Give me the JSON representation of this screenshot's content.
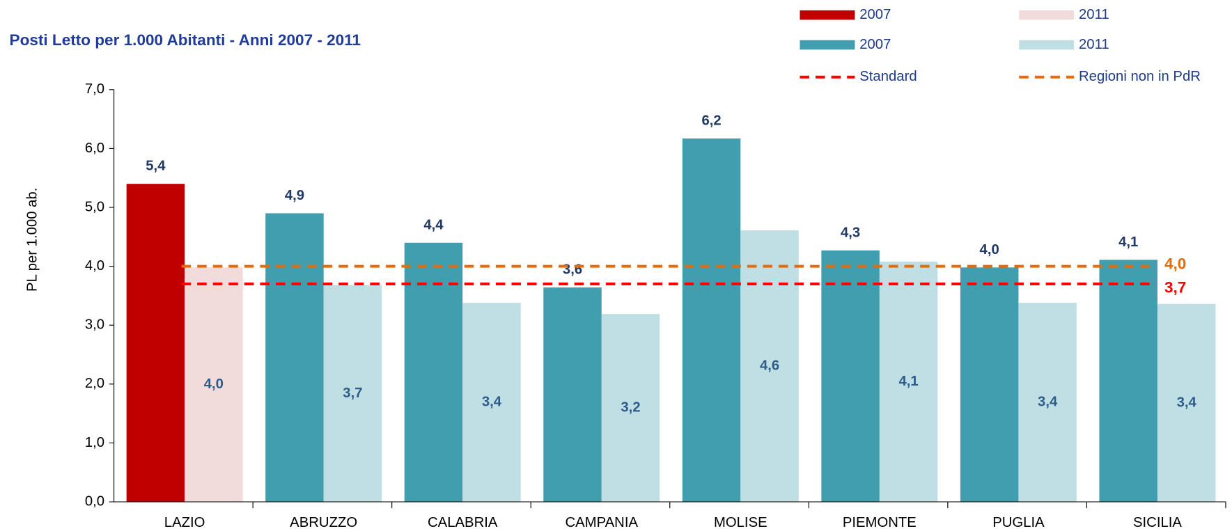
{
  "chart_data": {
    "type": "bar",
    "title": "Posti Letto per 1.000 Abitanti - Anni 2007 - 2011",
    "y_label": "PL per 1.000 ab.",
    "categories": [
      "LAZIO",
      "ABRUZZO",
      "CALABRIA",
      "CAMPANIA",
      "MOLISE",
      "PIEMONTE",
      "PUGLIA",
      "SICILIA"
    ],
    "series": [
      {
        "name": "2007",
        "color": "#c00000",
        "values": [
          5.4,
          null,
          null,
          null,
          null,
          null,
          null,
          null
        ],
        "value_labels": [
          "5,4",
          null,
          null,
          null,
          null,
          null,
          null,
          null
        ]
      },
      {
        "name": "2011",
        "color": "#f2dcdb",
        "values": [
          3.98,
          null,
          null,
          null,
          null,
          null,
          null,
          null
        ],
        "value_labels": [
          "4,0",
          null,
          null,
          null,
          null,
          null,
          null,
          null
        ]
      },
      {
        "name": "2007",
        "color": "#409eae",
        "values": [
          null,
          4.9,
          4.4,
          3.64,
          6.17,
          4.27,
          3.98,
          4.11
        ],
        "value_labels": [
          null,
          "4,9",
          "4,4",
          "3,6",
          "6,2",
          "4,3",
          "4,0",
          "4,1"
        ]
      },
      {
        "name": "2011",
        "color": "#c0dfe4",
        "values": [
          null,
          3.68,
          3.38,
          3.19,
          4.61,
          4.08,
          3.38,
          3.36
        ],
        "value_labels": [
          null,
          "3,7",
          "3,4",
          "3,2",
          "4,6",
          "4,1",
          "3,4",
          "3,4"
        ]
      }
    ],
    "reference_lines": [
      {
        "name": "Standard",
        "value": 3.7,
        "value_label": "3,7",
        "color": "#ff0000"
      },
      {
        "name": "Regioni non in PdR",
        "value": 4.0,
        "value_label": "4,0",
        "color": "#e46c0a"
      }
    ],
    "ylim": [
      0,
      7
    ],
    "yticks": [
      {
        "value": 0,
        "label": "0,0"
      },
      {
        "value": 1,
        "label": "1,0"
      },
      {
        "value": 2,
        "label": "2,0"
      },
      {
        "value": 3,
        "label": "3,0"
      },
      {
        "value": 4,
        "label": "4,0"
      },
      {
        "value": 5,
        "label": "5,0"
      },
      {
        "value": 6,
        "label": "6,0"
      },
      {
        "value": 7,
        "label": "7,0"
      }
    ]
  }
}
